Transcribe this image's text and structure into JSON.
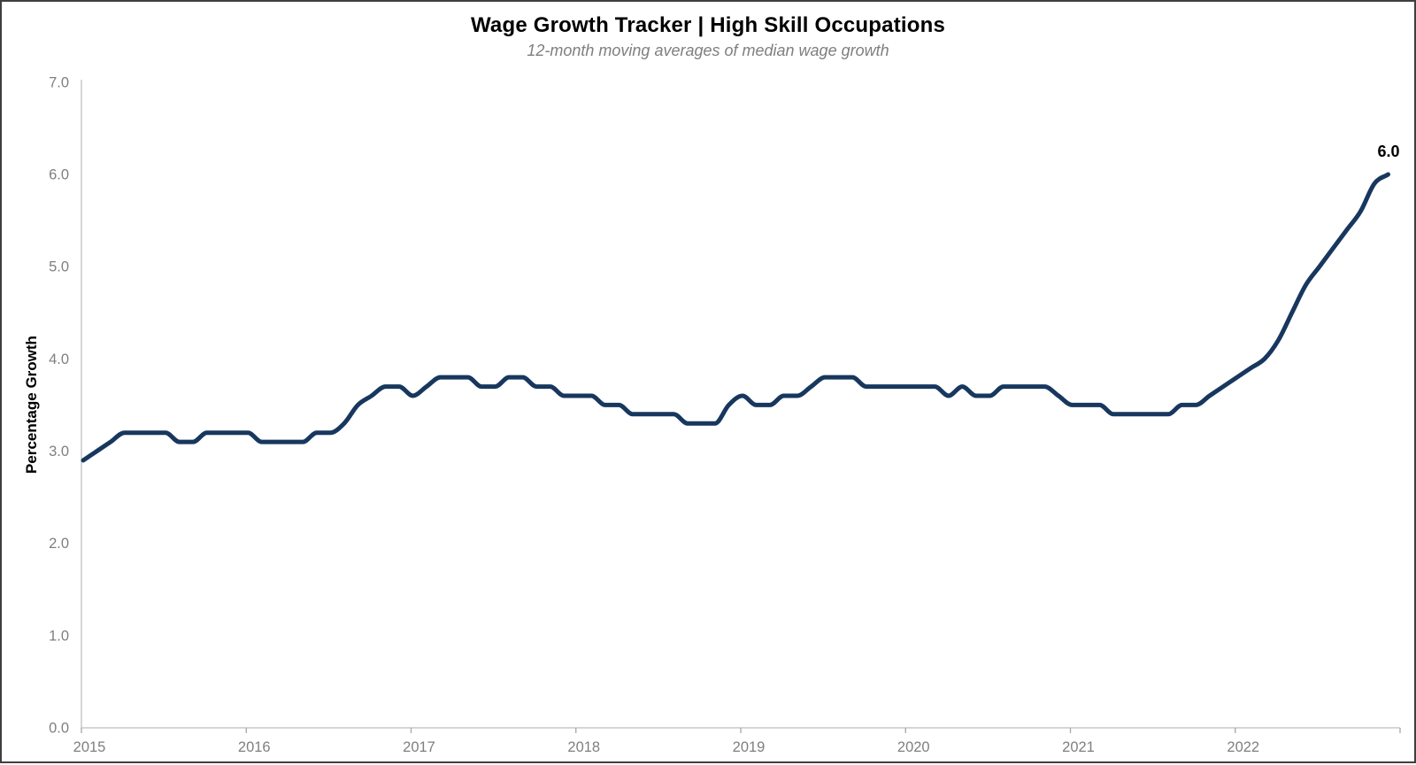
{
  "chart_data": {
    "type": "line",
    "title": "Wage Growth Tracker | High Skill Occupations",
    "subtitle": "12-month moving averages of median wage growth",
    "ylabel": "Percentage Growth",
    "ylim": [
      0.0,
      7.0
    ],
    "y_ticks": [
      "0.0",
      "1.0",
      "2.0",
      "3.0",
      "4.0",
      "5.0",
      "6.0",
      "7.0"
    ],
    "x_ticks": [
      "2015",
      "2016",
      "2017",
      "2018",
      "2019",
      "2020",
      "2021",
      "2022"
    ],
    "x_start": "2015-01",
    "x_end": "2022-12",
    "frequency": "monthly",
    "grid": false,
    "legend": "none",
    "line_color": "#17375e",
    "axis_color": "#bfbfbf",
    "tick_label_color": "#7f7f7f",
    "end_label": "6.0",
    "series": [
      {
        "name": "High Skill Occupations",
        "values": [
          2.9,
          3.0,
          3.1,
          3.2,
          3.2,
          3.2,
          3.2,
          3.1,
          3.1,
          3.2,
          3.2,
          3.2,
          3.2,
          3.1,
          3.1,
          3.1,
          3.1,
          3.2,
          3.2,
          3.3,
          3.5,
          3.6,
          3.7,
          3.7,
          3.6,
          3.7,
          3.8,
          3.8,
          3.8,
          3.7,
          3.7,
          3.8,
          3.8,
          3.7,
          3.7,
          3.6,
          3.6,
          3.6,
          3.5,
          3.5,
          3.4,
          3.4,
          3.4,
          3.4,
          3.3,
          3.3,
          3.3,
          3.5,
          3.6,
          3.5,
          3.5,
          3.6,
          3.6,
          3.7,
          3.8,
          3.8,
          3.8,
          3.7,
          3.7,
          3.7,
          3.7,
          3.7,
          3.7,
          3.6,
          3.7,
          3.6,
          3.6,
          3.7,
          3.7,
          3.7,
          3.7,
          3.6,
          3.5,
          3.5,
          3.5,
          3.4,
          3.4,
          3.4,
          3.4,
          3.4,
          3.5,
          3.5,
          3.6,
          3.7,
          3.8,
          3.9,
          4.0,
          4.2,
          4.5,
          4.8,
          5.0,
          5.2,
          5.4,
          5.6,
          5.9,
          6.0
        ]
      }
    ]
  }
}
